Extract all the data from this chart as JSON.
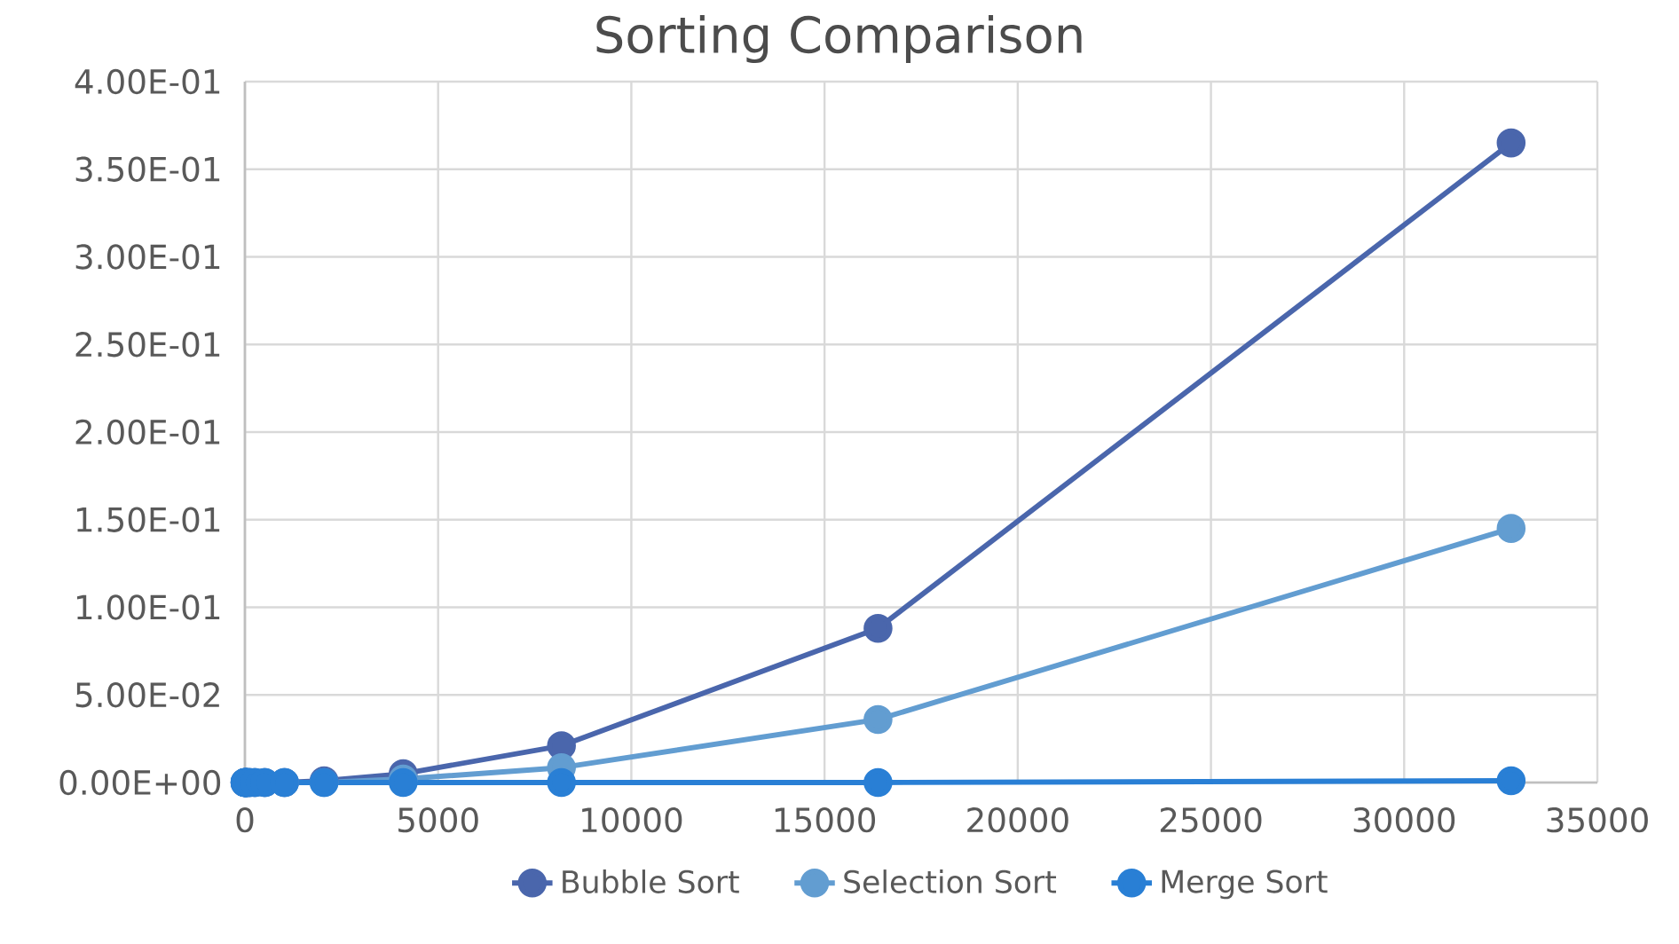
{
  "chart_data": {
    "type": "line",
    "title": "Sorting Comparison",
    "x": [
      2,
      4,
      8,
      16,
      32,
      64,
      128,
      256,
      512,
      1024,
      2048,
      4096,
      8192,
      16384,
      32768
    ],
    "series": [
      {
        "name": "Bubble Sort",
        "color": "#4a66ac",
        "values": [
          0,
          0,
          0,
          0,
          0,
          0,
          0,
          0,
          0,
          0,
          0.001,
          0.005,
          0.021,
          0.088,
          0.365
        ]
      },
      {
        "name": "Selection Sort",
        "color": "#629dd1",
        "values": [
          0,
          0,
          0,
          0,
          0,
          0,
          0,
          0,
          0,
          0,
          0,
          0.002,
          0.0085,
          0.036,
          0.145
        ]
      },
      {
        "name": "Merge Sort",
        "color": "#297fd5",
        "values": [
          0,
          0,
          0,
          0,
          0,
          0,
          0,
          0,
          0,
          0,
          0,
          0,
          0,
          0,
          0.001
        ]
      }
    ],
    "xlim": [
      0,
      35000
    ],
    "xticks": [
      0,
      5000,
      10000,
      15000,
      20000,
      25000,
      30000,
      35000
    ],
    "ylim": [
      0,
      0.4
    ],
    "yticks": [
      {
        "value": 0,
        "label": "0.00E+00"
      },
      {
        "value": 0.05,
        "label": "5.00E-02"
      },
      {
        "value": 0.1,
        "label": "1.00E-01"
      },
      {
        "value": 0.15,
        "label": "1.50E-01"
      },
      {
        "value": 0.2,
        "label": "2.00E-01"
      },
      {
        "value": 0.25,
        "label": "2.50E-01"
      },
      {
        "value": 0.3,
        "label": "3.00E-01"
      },
      {
        "value": 0.35,
        "label": "3.50E-01"
      },
      {
        "value": 0.4,
        "label": "4.00E-01"
      }
    ],
    "grid": true,
    "legend": "bottom",
    "marker": "circle",
    "line_style": "solid"
  }
}
